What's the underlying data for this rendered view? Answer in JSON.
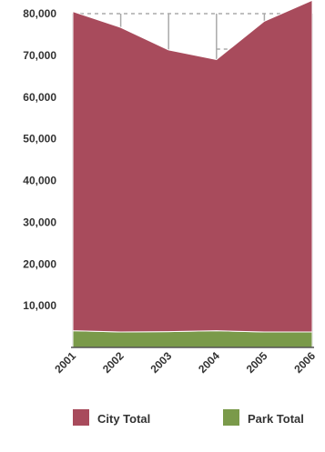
{
  "chart_data": {
    "type": "area",
    "stacked": true,
    "x": [
      "2001",
      "2002",
      "2003",
      "2004",
      "2005",
      "2006"
    ],
    "series": [
      {
        "name": "Park Total",
        "color": "#7a9a4a",
        "values": [
          4000,
          3700,
          3800,
          4000,
          3700,
          3700
        ]
      },
      {
        "name": "City Total",
        "color": "#a84b5c",
        "values": [
          76500,
          73000,
          67500,
          65000,
          74500,
          79500
        ]
      }
    ],
    "yticks": [
      "10,000",
      "20,000",
      "30,000",
      "40,000",
      "50,000",
      "60,000",
      "70,000",
      "80,000"
    ],
    "ylim": [
      0,
      80000
    ],
    "grid": true,
    "legend": "bottom"
  }
}
